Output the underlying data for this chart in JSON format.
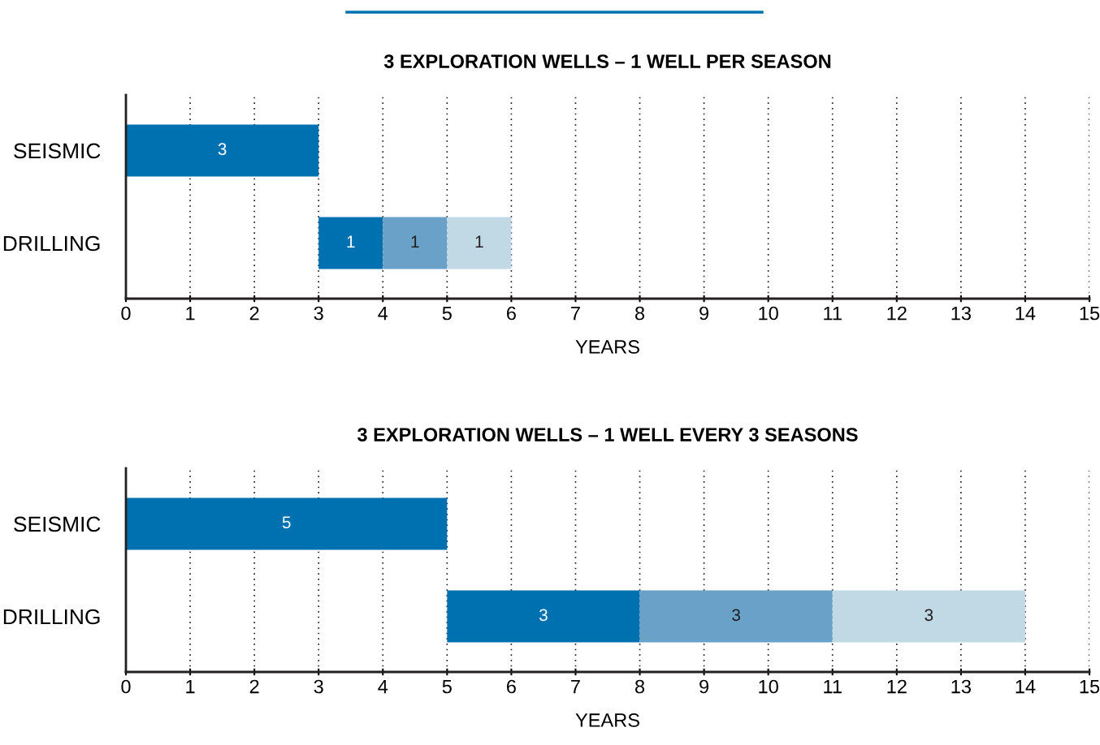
{
  "chart_data": [
    {
      "type": "bar",
      "orientation": "horizontal",
      "title": "3 EXPLORATION WELLS – 1 WELL PER SEASON",
      "xlabel": "YEARS",
      "categories": [
        "SEISMIC",
        "DRILLING"
      ],
      "xlim": [
        0,
        15
      ],
      "xticks": [
        0,
        1,
        2,
        3,
        4,
        5,
        6,
        7,
        8,
        9,
        10,
        11,
        12,
        13,
        14,
        15
      ],
      "grid": "x",
      "data_labels": true,
      "series": [
        {
          "color": "#0071b0",
          "values": [
            3,
            1
          ],
          "base": [
            0,
            3
          ]
        },
        {
          "color": "#69a1c8",
          "values": [
            null,
            1
          ],
          "base": [
            null,
            4
          ]
        },
        {
          "color": "#c0d9e5",
          "values": [
            null,
            1
          ],
          "base": [
            null,
            5
          ]
        }
      ]
    },
    {
      "type": "bar",
      "orientation": "horizontal",
      "title": "3 EXPLORATION WELLS – 1 WELL EVERY 3 SEASONS",
      "xlabel": "YEARS",
      "categories": [
        "SEISMIC",
        "DRILLING"
      ],
      "xlim": [
        0,
        15
      ],
      "xticks": [
        0,
        1,
        2,
        3,
        4,
        5,
        6,
        7,
        8,
        9,
        10,
        11,
        12,
        13,
        14,
        15
      ],
      "grid": "x",
      "data_labels": true,
      "series": [
        {
          "color": "#0071b0",
          "values": [
            5,
            3
          ],
          "base": [
            0,
            5
          ]
        },
        {
          "color": "#69a1c8",
          "values": [
            null,
            3
          ],
          "base": [
            null,
            8
          ]
        },
        {
          "color": "#c0d9e5",
          "values": [
            null,
            3
          ],
          "base": [
            null,
            11
          ]
        }
      ]
    }
  ]
}
